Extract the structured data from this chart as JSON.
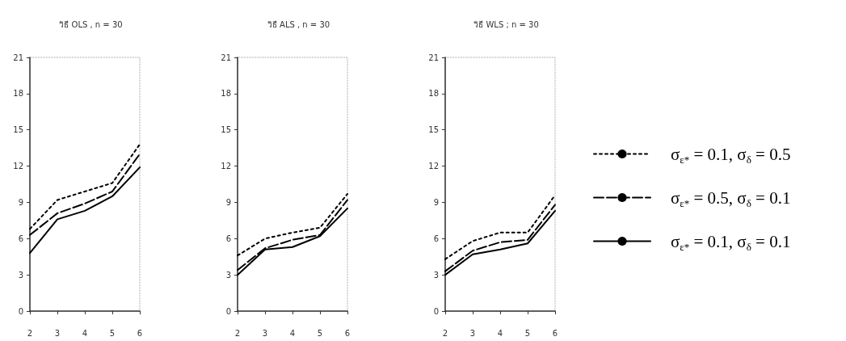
{
  "chart_data": [
    {
      "type": "line",
      "title": "วิธี OLS , n = 30",
      "categories": [
        "2",
        "3",
        "4",
        "5",
        "6"
      ],
      "ylim": [
        0,
        21
      ],
      "yticks": [
        0,
        3,
        6,
        9,
        12,
        15,
        18,
        21
      ],
      "grid": false,
      "marker": "none",
      "series": [
        {
          "color": "#000000",
          "line_style": "dotted",
          "values": [
            6.8,
            9.2,
            9.9,
            10.6,
            13.8
          ]
        },
        {
          "color": "#000000",
          "line_style": "dashed",
          "values": [
            6.3,
            8.1,
            8.9,
            9.9,
            13.0
          ]
        },
        {
          "color": "#000000",
          "line_style": "solid",
          "values": [
            4.8,
            7.6,
            8.3,
            9.5,
            11.9
          ]
        }
      ]
    },
    {
      "type": "line",
      "title": "วิธี ALS , n = 30",
      "categories": [
        "2",
        "3",
        "4",
        "5",
        "6"
      ],
      "ylim": [
        0,
        21
      ],
      "yticks": [
        0,
        3,
        6,
        9,
        12,
        15,
        18,
        21
      ],
      "grid": false,
      "marker": "none",
      "series": [
        {
          "color": "#000000",
          "line_style": "dotted",
          "values": [
            4.6,
            6.0,
            6.5,
            6.9,
            9.7
          ]
        },
        {
          "color": "#000000",
          "line_style": "dashed",
          "values": [
            3.4,
            5.2,
            5.9,
            6.3,
            9.2
          ]
        },
        {
          "color": "#000000",
          "line_style": "solid",
          "values": [
            3.0,
            5.1,
            5.3,
            6.2,
            8.5
          ]
        }
      ]
    },
    {
      "type": "line",
      "title": "วิธี WLS ; n = 30",
      "categories": [
        "2",
        "3",
        "4",
        "5",
        "6"
      ],
      "ylim": [
        0,
        21
      ],
      "yticks": [
        0,
        3,
        6,
        9,
        12,
        15,
        18,
        21
      ],
      "grid": false,
      "marker": "none",
      "legend": "right",
      "series": [
        {
          "name": "σ$_{ε*}$ = 0.1, σ$_{δ}$ = 0.5",
          "color": "#000000",
          "line_style": "dotted",
          "values": [
            4.3,
            5.8,
            6.5,
            6.5,
            9.6
          ]
        },
        {
          "name": "σ$_{ε*}$ = 0.5, σ$_{δ}$ = 0.1",
          "color": "#000000",
          "line_style": "dashed",
          "values": [
            3.3,
            5.0,
            5.7,
            5.9,
            8.8
          ]
        },
        {
          "name": "σ$_{ε*}$ = 0.1, σ$_{δ}$ = 0.1",
          "color": "#000000",
          "line_style": "solid",
          "values": [
            3.0,
            4.7,
            5.1,
            5.6,
            8.3
          ]
        }
      ]
    }
  ]
}
